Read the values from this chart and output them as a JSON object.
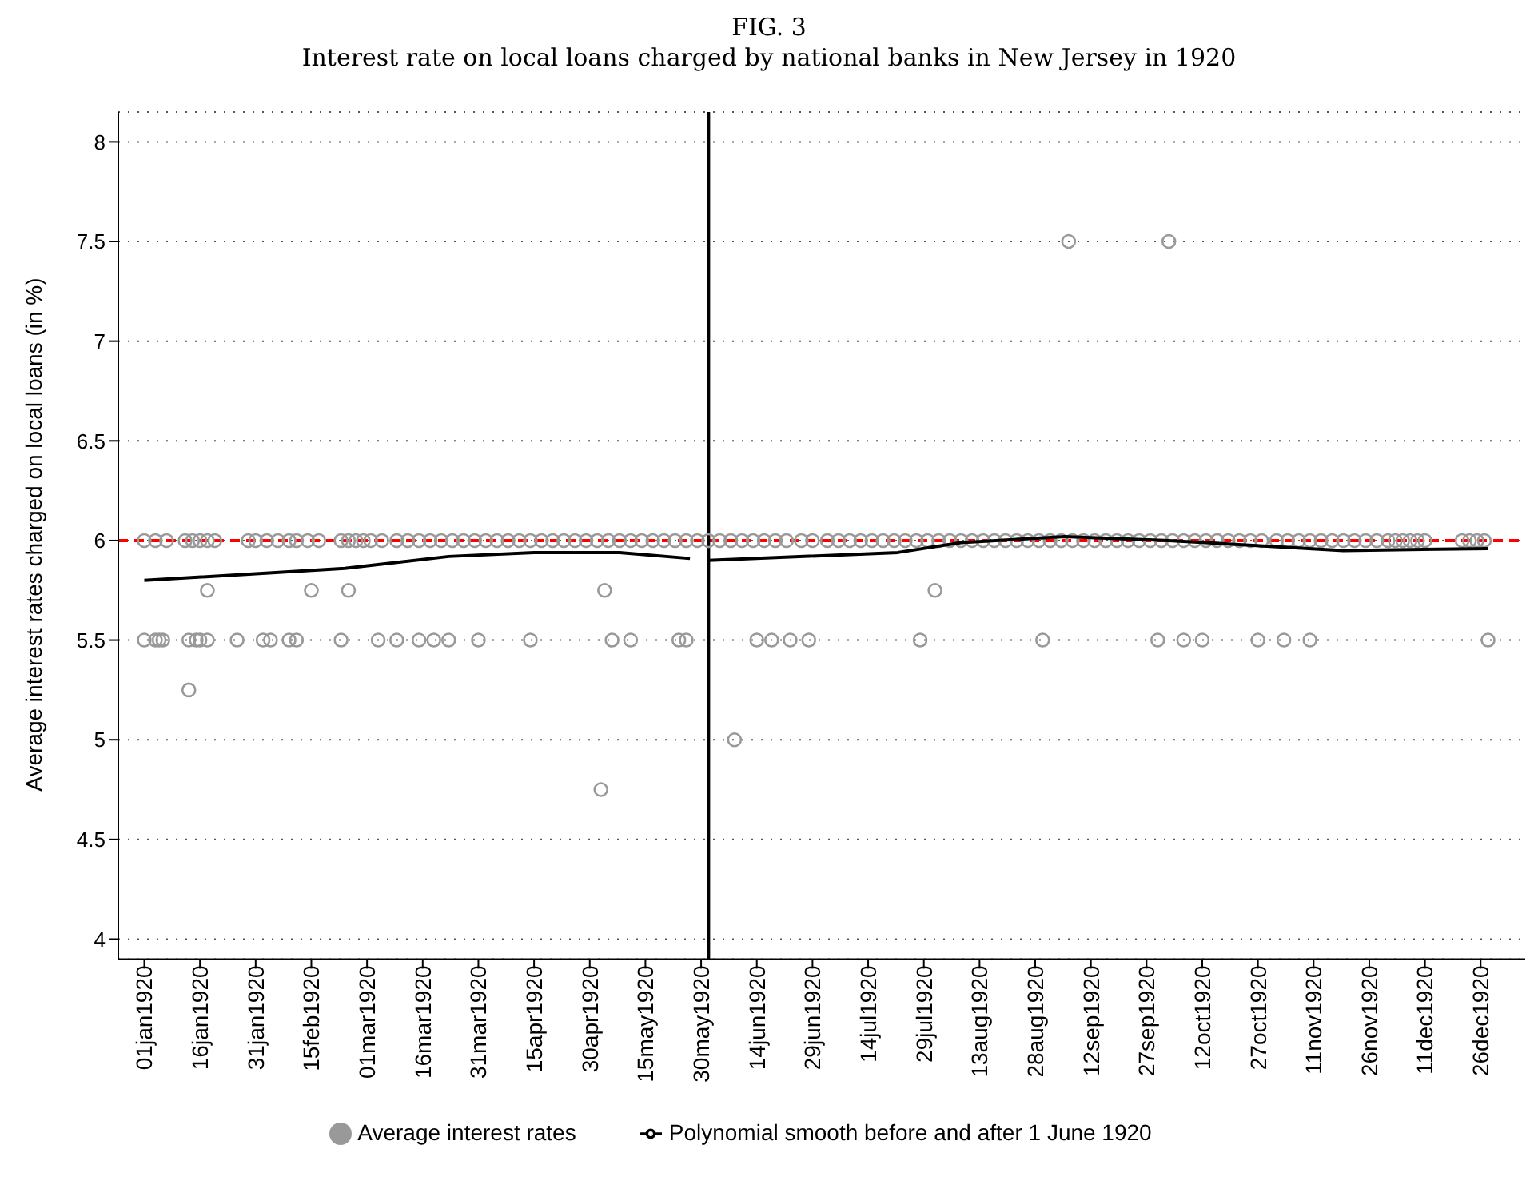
{
  "chart_data": {
    "type": "scatter",
    "title": "FIG. 3",
    "subtitle": "Interest rate on local loans charged by national banks in New Jersey in 1920",
    "ylabel": "Average interest rates charged on local loans (in %)",
    "xlim": [
      "1919-12-25",
      "1921-01-07"
    ],
    "xticks": [
      {
        "value": "1920-01-01",
        "label": "01jan1920"
      },
      {
        "value": "1920-01-16",
        "label": "16jan1920"
      },
      {
        "value": "1920-01-31",
        "label": "31jan1920"
      },
      {
        "value": "1920-02-15",
        "label": "15feb1920"
      },
      {
        "value": "1920-03-01",
        "label": "01mar1920"
      },
      {
        "value": "1920-03-16",
        "label": "16mar1920"
      },
      {
        "value": "1920-03-31",
        "label": "31mar1920"
      },
      {
        "value": "1920-04-15",
        "label": "15apr1920"
      },
      {
        "value": "1920-04-30",
        "label": "30apr1920"
      },
      {
        "value": "1920-05-15",
        "label": "15may1920"
      },
      {
        "value": "1920-05-30",
        "label": "30may1920"
      },
      {
        "value": "1920-06-14",
        "label": "14jun1920"
      },
      {
        "value": "1920-06-29",
        "label": "29jun1920"
      },
      {
        "value": "1920-07-14",
        "label": "14jul1920"
      },
      {
        "value": "1920-07-29",
        "label": "29jul1920"
      },
      {
        "value": "1920-08-13",
        "label": "13aug1920"
      },
      {
        "value": "1920-08-28",
        "label": "28aug1920"
      },
      {
        "value": "1920-09-12",
        "label": "12sep1920"
      },
      {
        "value": "1920-09-27",
        "label": "27sep1920"
      },
      {
        "value": "1920-10-12",
        "label": "12oct1920"
      },
      {
        "value": "1920-10-27",
        "label": "27oct1920"
      },
      {
        "value": "1920-11-11",
        "label": "11nov1920"
      },
      {
        "value": "1920-11-26",
        "label": "26nov1920"
      },
      {
        "value": "1920-12-11",
        "label": "11dec1920"
      },
      {
        "value": "1920-12-26",
        "label": "26dec1920"
      }
    ],
    "ylim": [
      3.9,
      8.15
    ],
    "yticks": [
      4,
      4.5,
      5,
      5.5,
      6,
      6.5,
      7,
      7.5,
      8
    ],
    "grid": "y",
    "legend": "bottom",
    "marker": "circle",
    "ref_lines": [
      {
        "axis": "y",
        "value": 6,
        "color": "#ff0000",
        "line_style": "dashed"
      },
      {
        "axis": "x",
        "value": "1920-06-01",
        "color": "#000000",
        "line_style": "solid"
      }
    ],
    "series": [
      {
        "name": "Average interest rates",
        "color": "#999999",
        "x": [
          "1920-01-01",
          "1920-01-04",
          "1920-01-07",
          "1920-01-12",
          "1920-01-14",
          "1920-01-16",
          "1920-01-18",
          "1920-01-20",
          "1920-01-29",
          "1920-01-31",
          "1920-02-03",
          "1920-02-06",
          "1920-02-09",
          "1920-02-11",
          "1920-02-14",
          "1920-02-17",
          "1920-02-23",
          "1920-02-25",
          "1920-02-27",
          "1920-02-29",
          "1920-03-02",
          "1920-03-05",
          "1920-03-09",
          "1920-03-12",
          "1920-03-15",
          "1920-03-18",
          "1920-03-21",
          "1920-03-24",
          "1920-03-27",
          "1920-03-30",
          "1920-04-02",
          "1920-04-05",
          "1920-04-08",
          "1920-04-11",
          "1920-04-14",
          "1920-04-17",
          "1920-04-20",
          "1920-04-23",
          "1920-04-26",
          "1920-04-29",
          "1920-05-02",
          "1920-05-05",
          "1920-05-08",
          "1920-05-11",
          "1920-05-14",
          "1920-05-17",
          "1920-05-20",
          "1920-05-23",
          "1920-05-26",
          "1920-05-29",
          "1920-06-01",
          "1920-06-04",
          "1920-06-07",
          "1920-06-10",
          "1920-06-13",
          "1920-06-16",
          "1920-06-19",
          "1920-06-22",
          "1920-06-26",
          "1920-06-29",
          "1920-07-03",
          "1920-07-06",
          "1920-07-09",
          "1920-07-12",
          "1920-07-15",
          "1920-07-18",
          "1920-07-21",
          "1920-07-24",
          "1920-07-27",
          "1920-07-30",
          "1920-08-02",
          "1920-08-05",
          "1920-08-08",
          "1920-08-11",
          "1920-08-14",
          "1920-08-17",
          "1920-08-20",
          "1920-08-23",
          "1920-08-26",
          "1920-08-29",
          "1920-09-01",
          "1920-09-04",
          "1920-09-07",
          "1920-09-10",
          "1920-09-13",
          "1920-09-16",
          "1920-09-19",
          "1920-09-22",
          "1920-09-25",
          "1920-09-28",
          "1920-10-01",
          "1920-10-04",
          "1920-10-07",
          "1920-10-10",
          "1920-10-13",
          "1920-10-16",
          "1920-10-19",
          "1920-10-22",
          "1920-10-25",
          "1920-10-28",
          "1920-11-01",
          "1920-11-04",
          "1920-11-07",
          "1920-11-10",
          "1920-11-13",
          "1920-11-16",
          "1920-11-19",
          "1920-11-22",
          "1920-11-25",
          "1920-11-28",
          "1920-12-01",
          "1920-12-03",
          "1920-12-05",
          "1920-12-07",
          "1920-12-09",
          "1920-12-11",
          "1920-12-21",
          "1920-12-23",
          "1920-12-25",
          "1920-12-27",
          "1920-01-01",
          "1920-01-04",
          "1920-01-05",
          "1920-01-06",
          "1920-01-13",
          "1920-01-15",
          "1920-01-16",
          "1920-01-18",
          "1920-01-26",
          "1920-02-02",
          "1920-02-04",
          "1920-02-09",
          "1920-02-11",
          "1920-02-23",
          "1920-03-04",
          "1920-03-09",
          "1920-03-15",
          "1920-03-19",
          "1920-03-23",
          "1920-03-31",
          "1920-04-14",
          "1920-05-06",
          "1920-05-11",
          "1920-05-24",
          "1920-05-26",
          "1920-06-14",
          "1920-06-18",
          "1920-06-23",
          "1920-06-28",
          "1920-07-28",
          "1920-08-30",
          "1920-09-30",
          "1920-10-07",
          "1920-10-12",
          "1920-10-27",
          "1920-11-03",
          "1920-11-10",
          "1920-12-28",
          "1920-01-18",
          "1920-02-15",
          "1920-02-25",
          "1920-05-04",
          "1920-08-01",
          "1920-01-13",
          "1920-06-08",
          "1920-05-03",
          "1920-09-06",
          "1920-10-03"
        ],
        "values": [
          6,
          6,
          6,
          6,
          6,
          6,
          6,
          6,
          6,
          6,
          6,
          6,
          6,
          6,
          6,
          6,
          6,
          6,
          6,
          6,
          6,
          6,
          6,
          6,
          6,
          6,
          6,
          6,
          6,
          6,
          6,
          6,
          6,
          6,
          6,
          6,
          6,
          6,
          6,
          6,
          6,
          6,
          6,
          6,
          6,
          6,
          6,
          6,
          6,
          6,
          6,
          6,
          6,
          6,
          6,
          6,
          6,
          6,
          6,
          6,
          6,
          6,
          6,
          6,
          6,
          6,
          6,
          6,
          6,
          6,
          6,
          6,
          6,
          6,
          6,
          6,
          6,
          6,
          6,
          6,
          6,
          6,
          6,
          6,
          6,
          6,
          6,
          6,
          6,
          6,
          6,
          6,
          6,
          6,
          6,
          6,
          6,
          6,
          6,
          6,
          6,
          6,
          6,
          6,
          6,
          6,
          6,
          6,
          6,
          6,
          6,
          6,
          6,
          6,
          6,
          6,
          6,
          6,
          6,
          6,
          5.5,
          5.5,
          5.5,
          5.5,
          5.5,
          5.5,
          5.5,
          5.5,
          5.5,
          5.5,
          5.5,
          5.5,
          5.5,
          5.5,
          5.5,
          5.5,
          5.5,
          5.5,
          5.5,
          5.5,
          5.5,
          5.5,
          5.5,
          5.5,
          5.5,
          5.5,
          5.5,
          5.5,
          5.5,
          5.5,
          5.5,
          5.5,
          5.5,
          5.5,
          5.5,
          5.5,
          5.5,
          5.5,
          5.75,
          5.75,
          5.75,
          5.75,
          5.75,
          5.25,
          5,
          4.75,
          7.5,
          7.5
        ]
      },
      {
        "name": "Polynomial smooth before and after 1 June 1920",
        "type": "line",
        "marker": "none",
        "color": "#000000",
        "x": [
          "1920-01-01",
          "1920-02-24",
          "1920-03-23",
          "1920-04-15",
          "1920-05-08",
          "1920-05-27"
        ],
        "values": [
          5.8,
          5.86,
          5.92,
          5.94,
          5.94,
          5.91
        ]
      },
      {
        "type": "line",
        "marker": "none",
        "color": "#000000",
        "x": [
          "1920-06-01",
          "1920-07-22",
          "1920-08-08",
          "1920-09-05",
          "1920-10-03",
          "1920-11-19",
          "1920-12-28"
        ],
        "values": [
          5.9,
          5.94,
          5.99,
          6.02,
          6.0,
          5.95,
          5.96
        ]
      }
    ]
  }
}
